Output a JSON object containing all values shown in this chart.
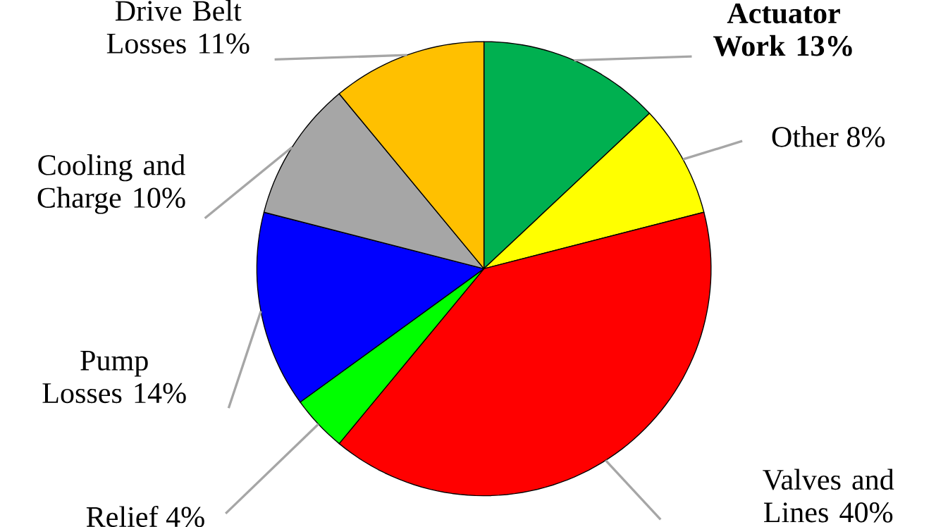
{
  "chart_data": {
    "type": "pie",
    "categories": [
      "Actuator Work",
      "Other",
      "Valves and Lines",
      "Relief",
      "Pump Losses",
      "Cooling and Charge",
      "Drive Belt Losses"
    ],
    "values": [
      13,
      8,
      40,
      4,
      14,
      10,
      11
    ],
    "value_labels": [
      "13%",
      "8%",
      "40%",
      "4%",
      "14%",
      "10%",
      "11%"
    ],
    "colors": [
      "#00b050",
      "#ffff00",
      "#ff0000",
      "#00ff00",
      "#0000ff",
      "#a6a6a6",
      "#ffc000"
    ]
  }
}
